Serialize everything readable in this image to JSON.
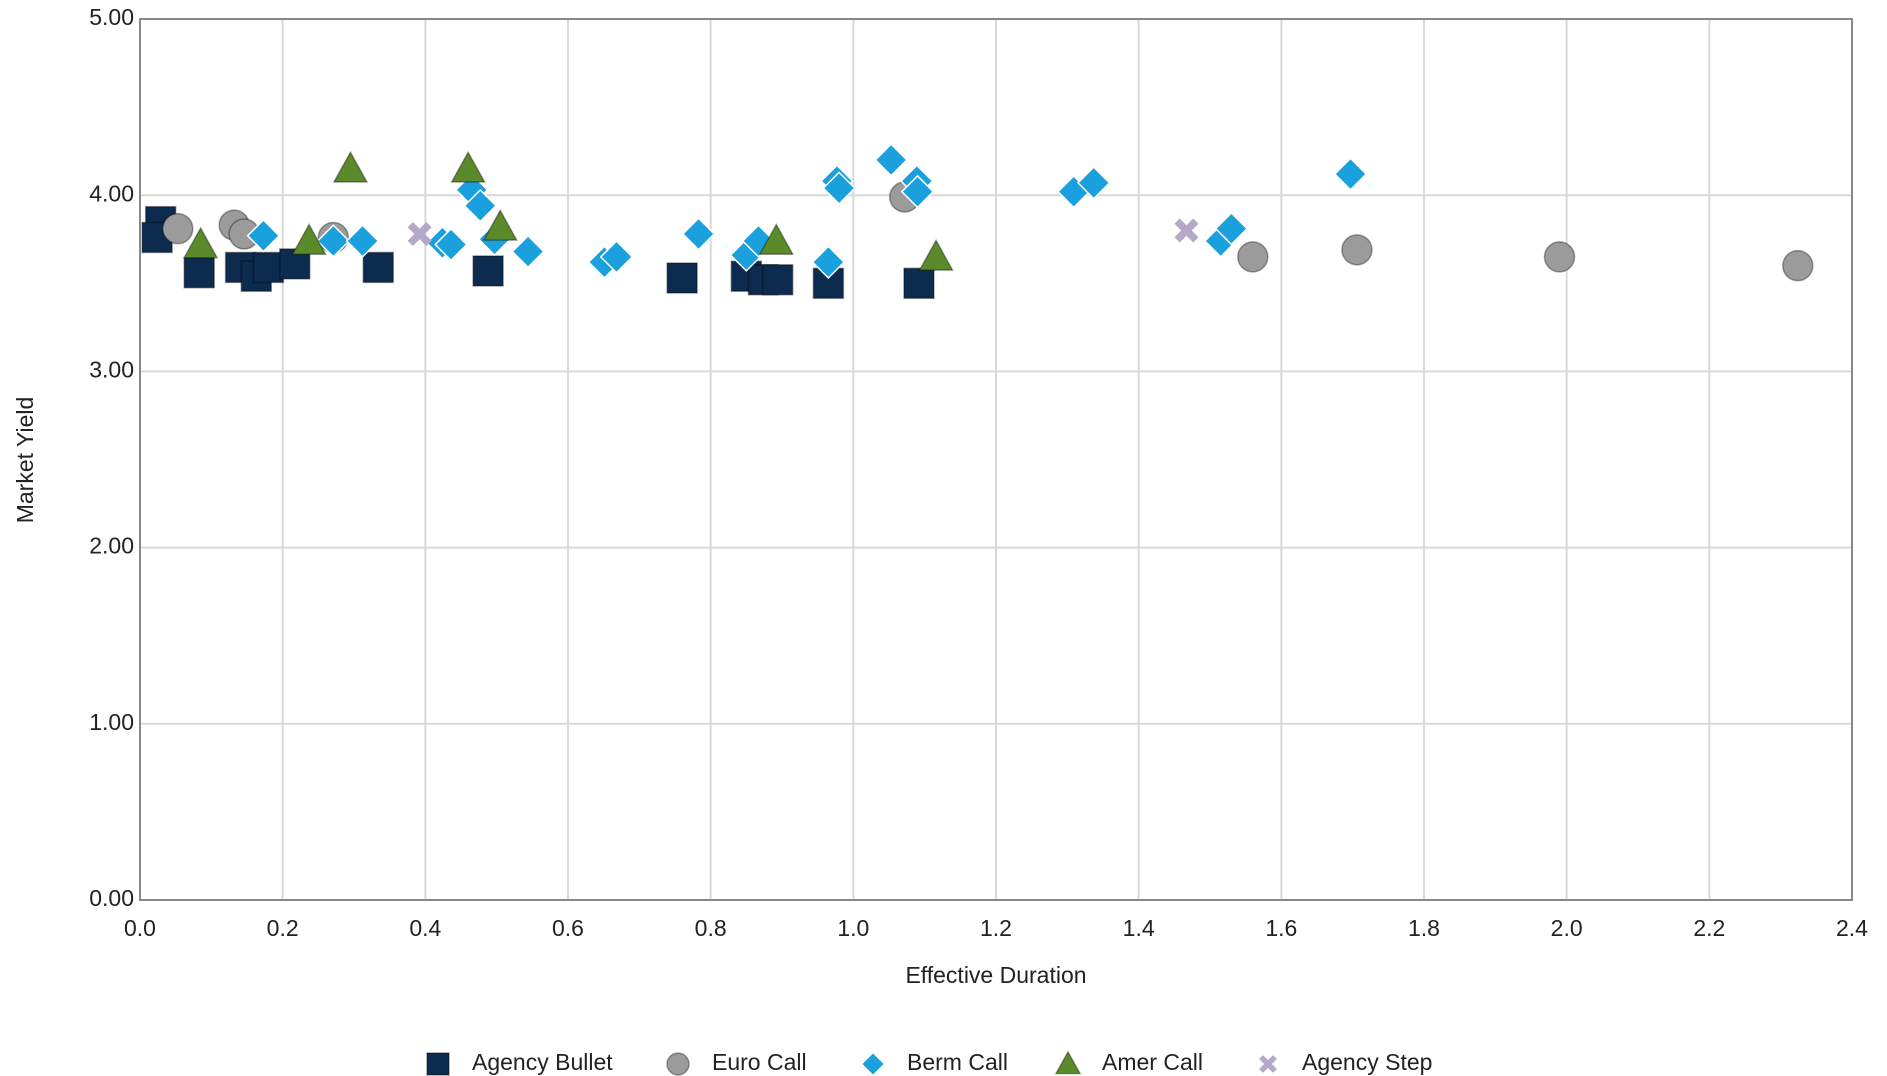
{
  "chart_data": {
    "type": "scatter",
    "x_label": "Effective Duration",
    "y_label": "Market Yield",
    "xlim": [
      0,
      2.4
    ],
    "ylim": [
      0,
      5
    ],
    "xticks": [
      {
        "value": 0,
        "label": "0.0"
      },
      0.2,
      0.4,
      0.6,
      0.8,
      {
        "value": 1,
        "label": "1.0"
      },
      1.2,
      1.4,
      1.6,
      1.8,
      {
        "value": 2,
        "label": "2.0"
      },
      2.2,
      2.4
    ],
    "yticks": [
      {
        "value": 0,
        "label": "0.00"
      },
      {
        "value": 1,
        "label": "1.00"
      },
      {
        "value": 2,
        "label": "2.00"
      },
      {
        "value": 3,
        "label": "3.00"
      },
      {
        "value": 4,
        "label": "4.00"
      },
      {
        "value": 5,
        "label": "5.00"
      }
    ],
    "grid": true,
    "legend": "bottom",
    "series": [
      {
        "name": "Agency Bullet",
        "color": "#0d2b4e",
        "marker": "square",
        "x": [
          0.029,
          0.024,
          0.083,
          0.141,
          0.163,
          0.18,
          0.217,
          0.334,
          0.488,
          0.76,
          0.85,
          0.874,
          0.894,
          0.965,
          1.092
        ],
        "values": [
          3.85,
          3.76,
          3.56,
          3.59,
          3.54,
          3.59,
          3.61,
          3.59,
          3.57,
          3.53,
          3.54,
          3.52,
          3.52,
          3.5,
          3.5
        ]
      },
      {
        "name": "Euro Call",
        "color": "#9b9b9b",
        "marker": "circle",
        "x": [
          0.053,
          0.132,
          0.146,
          0.271,
          1.072,
          1.56,
          1.706,
          1.99,
          2.324
        ],
        "values": [
          3.81,
          3.83,
          3.78,
          3.76,
          3.99,
          3.65,
          3.69,
          3.65,
          3.6
        ]
      },
      {
        "name": "Berm Call",
        "color": "#1aa0dc",
        "marker": "diamond",
        "x": [
          0.173,
          0.271,
          0.312,
          0.424,
          0.436,
          0.465,
          0.477,
          0.497,
          0.544,
          0.651,
          0.668,
          0.783,
          0.85,
          0.867,
          0.965,
          0.977,
          0.98,
          1.053,
          1.089,
          1.09,
          1.309,
          1.337,
          1.515,
          1.53,
          1.697
        ],
        "values": [
          3.77,
          3.74,
          3.74,
          3.73,
          3.72,
          4.03,
          3.94,
          3.75,
          3.68,
          3.62,
          3.65,
          3.78,
          3.66,
          3.74,
          3.62,
          4.08,
          4.04,
          4.2,
          4.08,
          4.02,
          4.02,
          4.07,
          3.74,
          3.81,
          4.12
        ]
      },
      {
        "name": "Amer Call",
        "color": "#5a8a2a",
        "marker": "triangle",
        "x": [
          0.295,
          0.085,
          0.237,
          0.46,
          0.505,
          0.892,
          1.116
        ],
        "values": [
          4.15,
          3.72,
          3.74,
          4.15,
          3.82,
          3.74,
          3.65
        ]
      },
      {
        "name": "Agency Step",
        "color": "#b5a8c8",
        "marker": "cross",
        "x": [
          0.392,
          1.467
        ],
        "values": [
          3.78,
          3.8
        ]
      }
    ]
  }
}
